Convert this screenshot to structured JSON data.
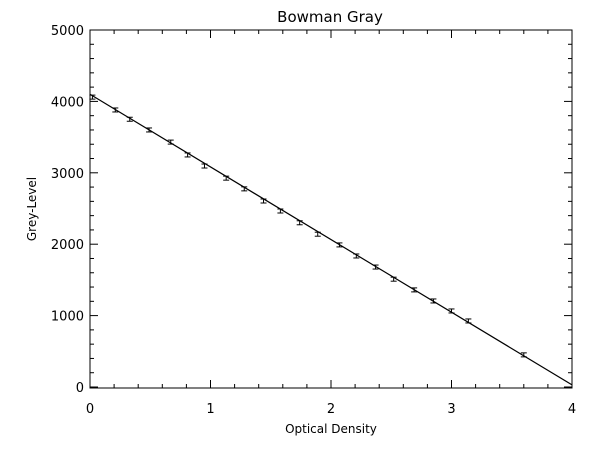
{
  "chart_data": {
    "type": "scatter",
    "title": "Bowman Gray",
    "xlabel": "Optical Density",
    "ylabel": "Grey-Level",
    "xlim": [
      0,
      4
    ],
    "ylim": [
      0,
      5000
    ],
    "xticks": [
      "0",
      "1",
      "2",
      "3",
      "4"
    ],
    "yticks": [
      "0",
      "1000",
      "2000",
      "3000",
      "4000",
      "5000"
    ],
    "grid": false,
    "error_bars": true,
    "points": [
      {
        "x": 0.02,
        "y": 4060
      },
      {
        "x": 0.21,
        "y": 3880
      },
      {
        "x": 0.33,
        "y": 3750
      },
      {
        "x": 0.49,
        "y": 3600
      },
      {
        "x": 0.67,
        "y": 3430
      },
      {
        "x": 0.81,
        "y": 3250
      },
      {
        "x": 0.95,
        "y": 3095
      },
      {
        "x": 1.13,
        "y": 2925
      },
      {
        "x": 1.28,
        "y": 2775
      },
      {
        "x": 1.44,
        "y": 2605
      },
      {
        "x": 1.58,
        "y": 2465
      },
      {
        "x": 1.74,
        "y": 2300
      },
      {
        "x": 1.89,
        "y": 2140
      },
      {
        "x": 2.07,
        "y": 1990
      },
      {
        "x": 2.21,
        "y": 1835
      },
      {
        "x": 2.37,
        "y": 1680
      },
      {
        "x": 2.52,
        "y": 1510
      },
      {
        "x": 2.69,
        "y": 1360
      },
      {
        "x": 2.85,
        "y": 1205
      },
      {
        "x": 3.0,
        "y": 1065
      },
      {
        "x": 3.14,
        "y": 925
      },
      {
        "x": 3.6,
        "y": 450
      }
    ],
    "fit_line": {
      "x": [
        0,
        4
      ],
      "y": [
        4100,
        30
      ]
    }
  }
}
